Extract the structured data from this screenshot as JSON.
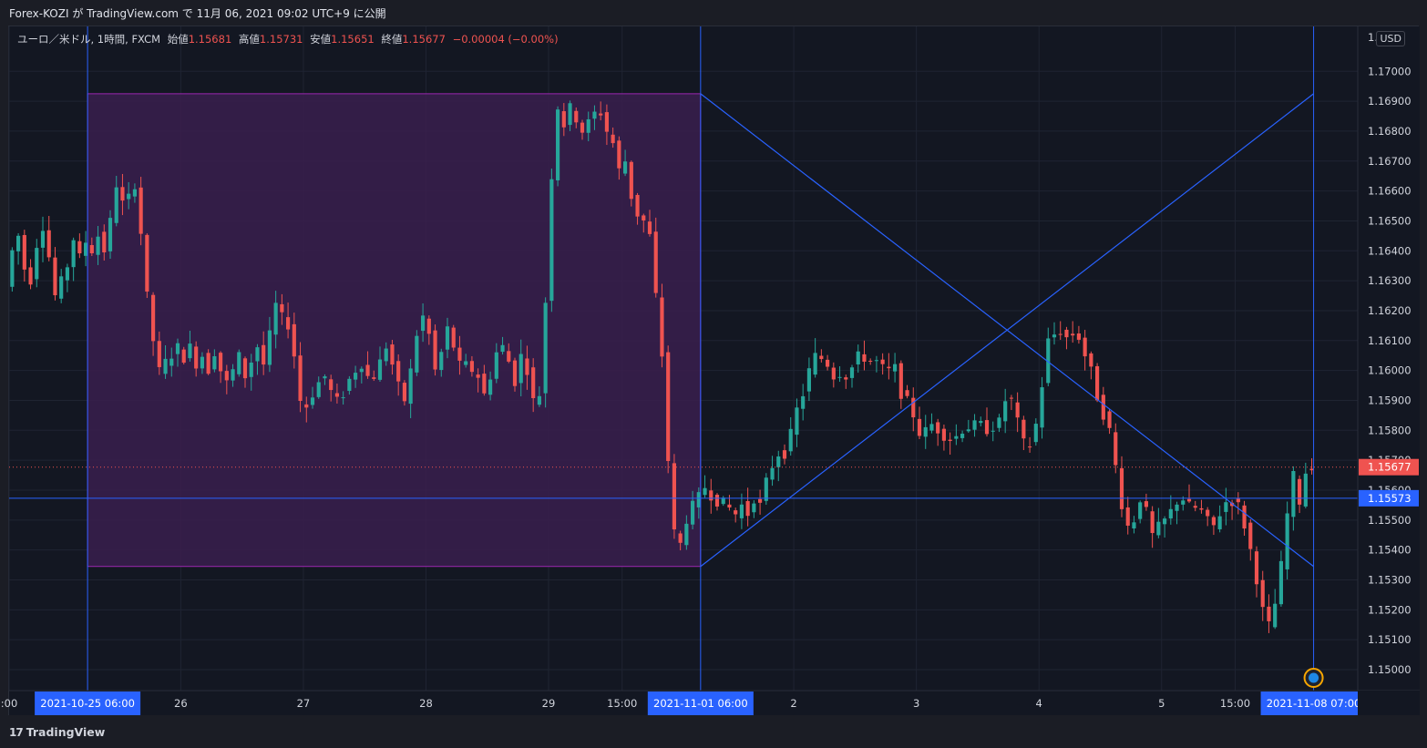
{
  "header": {
    "publish_line": "Forex-KOZI が TradingView.com で 11月 06, 2021 09:02 UTC+9 に公開"
  },
  "legend": {
    "symbol_line": "ユーロ／米ドル, 1時間, FXCM",
    "open_label": "始値",
    "open_value": "1.15681",
    "high_label": "高値",
    "high_value": "1.15731",
    "low_label": "安値",
    "low_value": "1.15651",
    "close_label": "終値",
    "close_value": "1.15677",
    "change": "−0.00004 (−0.00%)"
  },
  "currency_button": "USD",
  "footer": {
    "logo_text": "TradingView",
    "logo_mark": "17"
  },
  "colors": {
    "background": "#131722",
    "up": "#26a69a",
    "down": "#ef5350",
    "drawing": "#2962ff",
    "rect_fill": "#3a1f4d",
    "rect_border": "#9c27b0",
    "price_label_bg": "#ef5350",
    "hline_label_bg": "#2962ff"
  },
  "icons": [
    "tradingview-logo-icon",
    "economic-event-icon"
  ],
  "chart_data": {
    "type": "candlestick",
    "symbol": "ユーロ／米ドル",
    "interval": "1時間",
    "yaxis": {
      "ylim": [
        1.1493,
        1.1715
      ],
      "ticks": [
        "1.15000",
        "1.15100",
        "1.15200",
        "1.15300",
        "1.15400",
        "1.15500",
        "1.15600",
        "1.15700",
        "1.15800",
        "1.15900",
        "1.16000",
        "1.16100",
        "1.16200",
        "1.16300",
        "1.16400",
        "1.16500",
        "1.16600",
        "1.16700",
        "1.16800",
        "1.16900",
        "1.17000"
      ],
      "top_tick_partial": "1."
    },
    "xaxis": {
      "x_range": [
        0,
        220
      ],
      "ticks": [
        {
          "x": 0,
          "label": ":00"
        },
        {
          "x": 28,
          "label": "26"
        },
        {
          "x": 48,
          "label": "27"
        },
        {
          "x": 68,
          "label": "28"
        },
        {
          "x": 88,
          "label": "29"
        },
        {
          "x": 100,
          "label": "15:00"
        },
        {
          "x": 128,
          "label": "2"
        },
        {
          "x": 148,
          "label": "3"
        },
        {
          "x": 168,
          "label": "4"
        },
        {
          "x": 188,
          "label": "5"
        },
        {
          "x": 200,
          "label": "15:00"
        }
      ],
      "highlight_labels": [
        {
          "x": 12.8,
          "label": "2021-10-25   06:00"
        },
        {
          "x": 112.8,
          "label": "2021-11-01   06:00"
        },
        {
          "x": 212.8,
          "label": "2021-11-08   07:00"
        }
      ]
    },
    "current_price": 1.15677,
    "current_price_label": "1.15677",
    "horizontal_line": 1.15573,
    "horizontal_line_label": "1.15573",
    "rectangle": {
      "x_start": 12.8,
      "x_end": 112.8,
      "y_top": 1.16925,
      "y_bottom": 1.15345
    },
    "vertical_lines": [
      12.8,
      112.8,
      212.8
    ],
    "trend_lines": [
      {
        "x1": 112.8,
        "y1": 1.16925,
        "x2": 212.8,
        "y2": 1.15345
      },
      {
        "x1": 112.8,
        "y1": 1.15345,
        "x2": 212.8,
        "y2": 1.16925
      }
    ],
    "event_markers": [
      212.8,
      222.7
    ],
    "anchors": [
      [
        0,
        1.1628
      ],
      [
        1,
        1.164
      ],
      [
        2,
        1.1645
      ],
      [
        3,
        1.1634
      ],
      [
        4,
        1.163
      ],
      [
        5,
        1.1642
      ],
      [
        6,
        1.1648
      ],
      [
        7,
        1.1638
      ],
      [
        8,
        1.1625
      ],
      [
        9,
        1.163
      ],
      [
        10,
        1.1635
      ],
      [
        11,
        1.1644
      ],
      [
        12,
        1.1638
      ],
      [
        13,
        1.1643
      ],
      [
        14,
        1.164
      ],
      [
        15,
        1.1645
      ],
      [
        16,
        1.164
      ],
      [
        17,
        1.165
      ],
      [
        18,
        1.1662
      ],
      [
        19,
        1.1656
      ],
      [
        20,
        1.1658
      ],
      [
        21,
        1.1662
      ],
      [
        22,
        1.1646
      ],
      [
        23,
        1.1625
      ],
      [
        24,
        1.161
      ],
      [
        25,
        1.16
      ],
      [
        26,
        1.1603
      ],
      [
        27,
        1.1605
      ],
      [
        28,
        1.1608
      ],
      [
        29,
        1.1604
      ],
      [
        30,
        1.1608
      ],
      [
        31,
        1.1602
      ],
      [
        32,
        1.1605
      ],
      [
        33,
        1.16
      ],
      [
        34,
        1.1606
      ],
      [
        35,
        1.16
      ],
      [
        36,
        1.1596
      ],
      [
        37,
        1.16
      ],
      [
        38,
        1.1605
      ],
      [
        39,
        1.1598
      ],
      [
        40,
        1.1603
      ],
      [
        41,
        1.1608
      ],
      [
        42,
        1.1602
      ],
      [
        43,
        1.1612
      ],
      [
        44,
        1.1622
      ],
      [
        45,
        1.1618
      ],
      [
        46,
        1.1615
      ],
      [
        47,
        1.1605
      ],
      [
        48,
        1.159
      ],
      [
        49,
        1.1588
      ],
      [
        50,
        1.1592
      ],
      [
        51,
        1.1596
      ],
      [
        52,
        1.1598
      ],
      [
        53,
        1.1593
      ],
      [
        54,
        1.159
      ],
      [
        55,
        1.1592
      ],
      [
        56,
        1.1597
      ],
      [
        57,
        1.16
      ],
      [
        58,
        1.1602
      ],
      [
        59,
        1.1598
      ],
      [
        60,
        1.1598
      ],
      [
        61,
        1.1603
      ],
      [
        62,
        1.1608
      ],
      [
        63,
        1.1602
      ],
      [
        64,
        1.1595
      ],
      [
        65,
        1.159
      ],
      [
        66,
        1.16
      ],
      [
        67,
        1.1612
      ],
      [
        68,
        1.1618
      ],
      [
        69,
        1.1612
      ],
      [
        70,
        1.16
      ],
      [
        71,
        1.1606
      ],
      [
        72,
        1.1614
      ],
      [
        73,
        1.1608
      ],
      [
        74,
        1.1602
      ],
      [
        75,
        1.1602
      ],
      [
        76,
        1.16
      ],
      [
        77,
        1.1598
      ],
      [
        78,
        1.1592
      ],
      [
        79,
        1.1598
      ],
      [
        80,
        1.1606
      ],
      [
        81,
        1.1608
      ],
      [
        82,
        1.1603
      ],
      [
        83,
        1.1596
      ],
      [
        84,
        1.1605
      ],
      [
        85,
        1.16
      ],
      [
        86,
        1.159
      ],
      [
        87,
        1.1592
      ],
      [
        88,
        1.1623
      ],
      [
        89,
        1.1665
      ],
      [
        90,
        1.1688
      ],
      [
        91,
        1.1682
      ],
      [
        92,
        1.1688
      ],
      [
        93,
        1.1684
      ],
      [
        94,
        1.168
      ],
      [
        95,
        1.1683
      ],
      [
        96,
        1.1686
      ],
      [
        97,
        1.1686
      ],
      [
        98,
        1.168
      ],
      [
        99,
        1.1676
      ],
      [
        100,
        1.1667
      ],
      [
        101,
        1.167
      ],
      [
        102,
        1.1658
      ],
      [
        103,
        1.1652
      ],
      [
        104,
        1.165
      ],
      [
        105,
        1.1645
      ],
      [
        106,
        1.1625
      ],
      [
        107,
        1.1605
      ],
      [
        108,
        1.157
      ],
      [
        109,
        1.1546
      ],
      [
        110,
        1.1542
      ],
      [
        111,
        1.155
      ],
      [
        112,
        1.1555
      ],
      [
        113,
        1.1558
      ],
      [
        114,
        1.1561
      ],
      [
        115,
        1.1558
      ],
      [
        116,
        1.1556
      ],
      [
        117,
        1.1556
      ],
      [
        118,
        1.1554
      ],
      [
        119,
        1.1552
      ],
      [
        120,
        1.1555
      ],
      [
        121,
        1.1552
      ],
      [
        122,
        1.1557
      ],
      [
        123,
        1.1555
      ],
      [
        124,
        1.1563
      ],
      [
        125,
        1.1568
      ],
      [
        126,
        1.1572
      ],
      [
        127,
        1.1572
      ],
      [
        128,
        1.1579
      ],
      [
        129,
        1.1587
      ],
      [
        130,
        1.1592
      ],
      [
        131,
        1.16
      ],
      [
        132,
        1.1605
      ],
      [
        133,
        1.1604
      ],
      [
        134,
        1.1602
      ],
      [
        135,
        1.1598
      ],
      [
        136,
        1.1599
      ],
      [
        137,
        1.1598
      ],
      [
        138,
        1.1601
      ],
      [
        139,
        1.1605
      ],
      [
        140,
        1.1604
      ],
      [
        141,
        1.1603
      ],
      [
        142,
        1.1603
      ],
      [
        143,
        1.1601
      ],
      [
        144,
        1.16
      ],
      [
        145,
        1.1601
      ],
      [
        146,
        1.1592
      ],
      [
        147,
        1.159
      ],
      [
        148,
        1.1585
      ],
      [
        149,
        1.1579
      ],
      [
        150,
        1.158
      ],
      [
        151,
        1.1582
      ],
      [
        152,
        1.158
      ],
      [
        153,
        1.1578
      ],
      [
        154,
        1.1577
      ],
      [
        155,
        1.1578
      ],
      [
        156,
        1.158
      ],
      [
        157,
        1.1581
      ],
      [
        158,
        1.1582
      ],
      [
        159,
        1.1582
      ],
      [
        160,
        1.158
      ],
      [
        161,
        1.1581
      ],
      [
        162,
        1.1583
      ],
      [
        163,
        1.159
      ],
      [
        164,
        1.159
      ],
      [
        165,
        1.1583
      ],
      [
        166,
        1.1576
      ],
      [
        167,
        1.1575
      ],
      [
        168,
        1.1582
      ],
      [
        169,
        1.1595
      ],
      [
        170,
        1.161
      ],
      [
        171,
        1.1612
      ],
      [
        172,
        1.1613
      ],
      [
        173,
        1.1611
      ],
      [
        174,
        1.1612
      ],
      [
        175,
        1.1611
      ],
      [
        176,
        1.1605
      ],
      [
        177,
        1.16
      ],
      [
        178,
        1.1591
      ],
      [
        179,
        1.1585
      ],
      [
        180,
        1.158
      ],
      [
        181,
        1.1568
      ],
      [
        182,
        1.1555
      ],
      [
        183,
        1.1548
      ],
      [
        184,
        1.155
      ],
      [
        185,
        1.1557
      ],
      [
        186,
        1.1553
      ],
      [
        187,
        1.1545
      ],
      [
        188,
        1.1548
      ],
      [
        189,
        1.155
      ],
      [
        190,
        1.1553
      ],
      [
        191,
        1.1556
      ],
      [
        192,
        1.1557
      ],
      [
        193,
        1.1555
      ],
      [
        194,
        1.1554
      ],
      [
        195,
        1.1553
      ],
      [
        196,
        1.155
      ],
      [
        197,
        1.1548
      ],
      [
        198,
        1.1552
      ],
      [
        199,
        1.1556
      ],
      [
        200,
        1.1556
      ],
      [
        201,
        1.1555
      ],
      [
        202,
        1.1548
      ],
      [
        203,
        1.154
      ],
      [
        204,
        1.153
      ],
      [
        205,
        1.152
      ],
      [
        206,
        1.1515
      ],
      [
        207,
        1.1522
      ],
      [
        208,
        1.1535
      ],
      [
        209,
        1.1552
      ],
      [
        210,
        1.1565
      ],
      [
        211,
        1.1556
      ],
      [
        212,
        1.1566
      ],
      [
        213,
        1.1568
      ]
    ]
  }
}
